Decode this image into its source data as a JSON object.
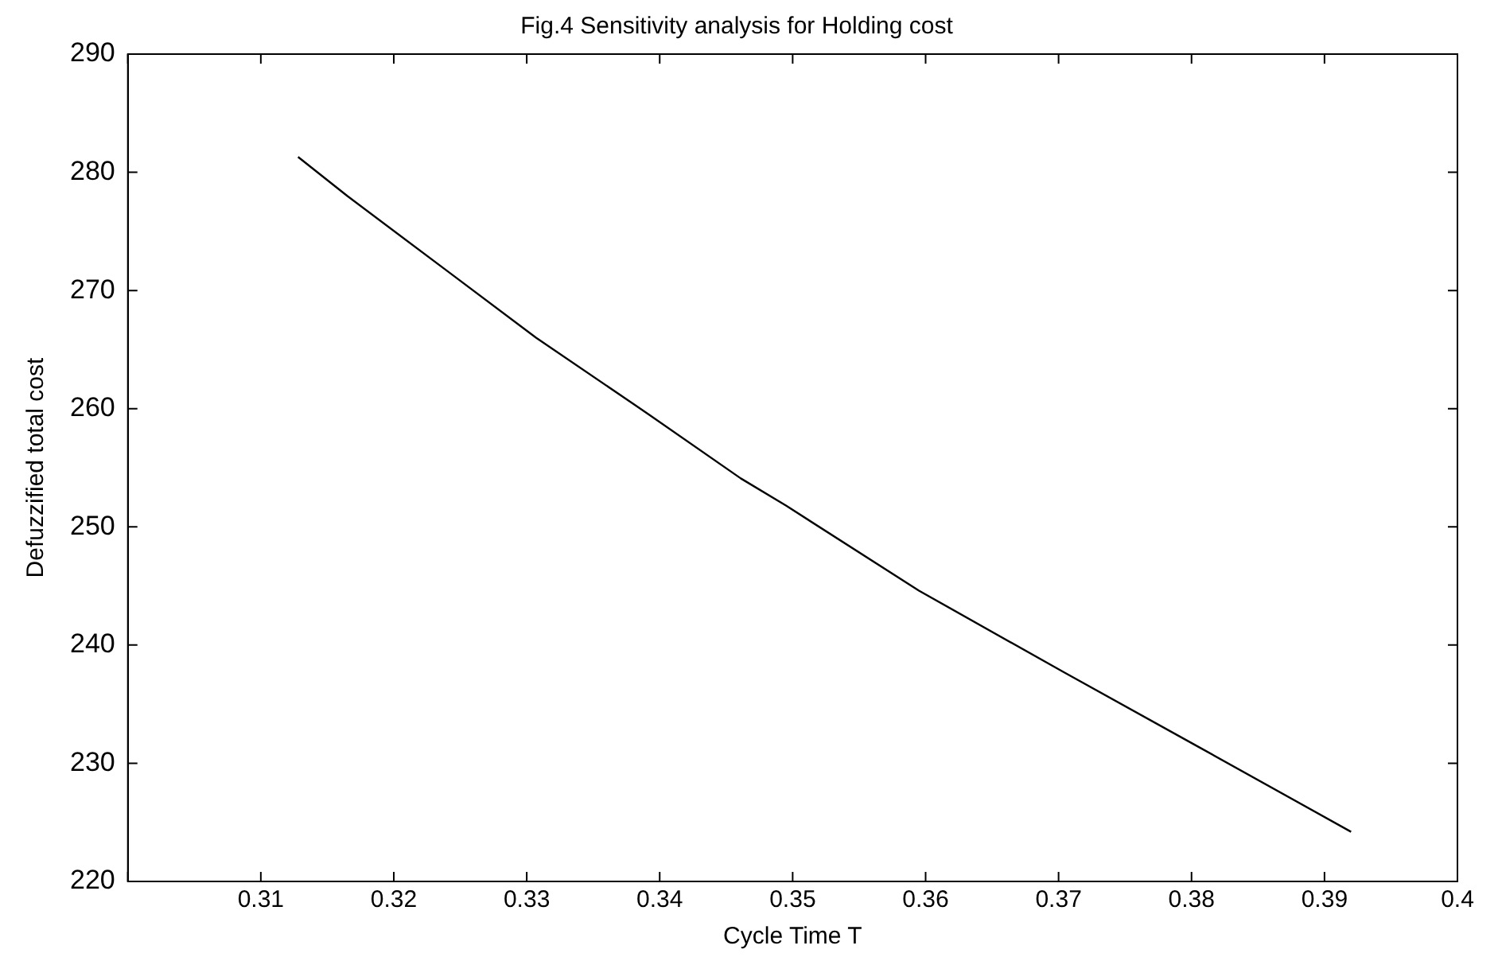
{
  "chart_data": {
    "type": "line",
    "title": "Fig.4 Sensitivity analysis for Holding cost",
    "xlabel": "Cycle Time T",
    "ylabel": "Defuzzified total cost",
    "x": [
      0.3128,
      0.3165,
      0.3242,
      0.3307,
      0.3392,
      0.3461,
      0.3495,
      0.3595,
      0.3704,
      0.3805,
      0.392
    ],
    "series": [
      {
        "color": "#000000",
        "values": [
          281.3,
          278.0,
          271.5,
          266.0,
          259.5,
          254.1,
          251.8,
          244.6,
          237.7,
          231.4,
          224.2
        ]
      }
    ],
    "xlim": [
      0.3,
      0.4
    ],
    "xticks": [
      {
        "value": 0.3,
        "label": null
      },
      0.31,
      0.32,
      0.33,
      0.34,
      0.35,
      0.36,
      0.37,
      0.38,
      0.39,
      0.4
    ],
    "ylim": [
      220,
      290
    ],
    "yticks": [
      220,
      230,
      240,
      250,
      260,
      270,
      280,
      290
    ],
    "grid": false,
    "legend": false,
    "marker": "none",
    "line_style": "solid"
  }
}
